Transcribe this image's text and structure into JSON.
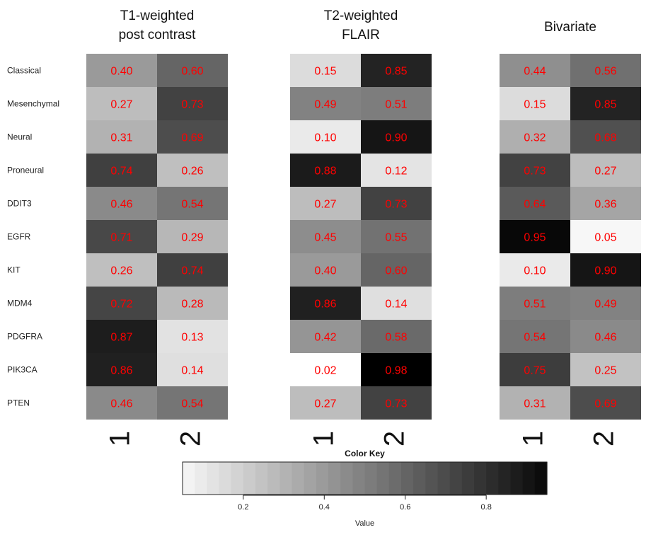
{
  "chart_data": {
    "type": "heatmap",
    "panels": [
      {
        "title_lines": [
          "T1-weighted",
          "post contrast"
        ],
        "columns": [
          "1",
          "2"
        ],
        "values": [
          [
            0.4,
            0.6
          ],
          [
            0.27,
            0.73
          ],
          [
            0.31,
            0.69
          ],
          [
            0.74,
            0.26
          ],
          [
            0.46,
            0.54
          ],
          [
            0.71,
            0.29
          ],
          [
            0.26,
            0.74
          ],
          [
            0.72,
            0.28
          ],
          [
            0.87,
            0.13
          ],
          [
            0.86,
            0.14
          ],
          [
            0.46,
            0.54
          ]
        ]
      },
      {
        "title_lines": [
          "T2-weighted",
          "FLAIR"
        ],
        "columns": [
          "1",
          "2"
        ],
        "values": [
          [
            0.15,
            0.85
          ],
          [
            0.49,
            0.51
          ],
          [
            0.1,
            0.9
          ],
          [
            0.88,
            0.12
          ],
          [
            0.27,
            0.73
          ],
          [
            0.45,
            0.55
          ],
          [
            0.4,
            0.6
          ],
          [
            0.86,
            0.14
          ],
          [
            0.42,
            0.58
          ],
          [
            0.02,
            0.98
          ],
          [
            0.27,
            0.73
          ]
        ]
      },
      {
        "title_lines": [
          "Bivariate"
        ],
        "columns": [
          "1",
          "2"
        ],
        "values": [
          [
            0.44,
            0.56
          ],
          [
            0.15,
            0.85
          ],
          [
            0.32,
            0.68
          ],
          [
            0.73,
            0.27
          ],
          [
            0.64,
            0.36
          ],
          [
            0.95,
            0.05
          ],
          [
            0.1,
            0.9
          ],
          [
            0.51,
            0.49
          ],
          [
            0.54,
            0.46
          ],
          [
            0.75,
            0.25
          ],
          [
            0.31,
            0.69
          ]
        ]
      }
    ],
    "rows": [
      "Classical",
      "Mesenchymal",
      "Neural",
      "Proneural",
      "DDIT3",
      "EGFR",
      "KIT",
      "MDM4",
      "PDGFRA",
      "PIK3CA",
      "PTEN"
    ],
    "value_range": [
      0.02,
      0.98
    ],
    "cell_text_color": "#ff0000",
    "color_low": "#ffffff",
    "color_high": "#000000",
    "color_key": {
      "title": "Color Key",
      "xlabel": "Value",
      "ticks": [
        "0.2",
        "0.4",
        "0.6",
        "0.8"
      ],
      "tick_values": [
        0.2,
        0.4,
        0.6,
        0.8
      ],
      "range": [
        0.05,
        0.95
      ],
      "steps": 30
    }
  }
}
